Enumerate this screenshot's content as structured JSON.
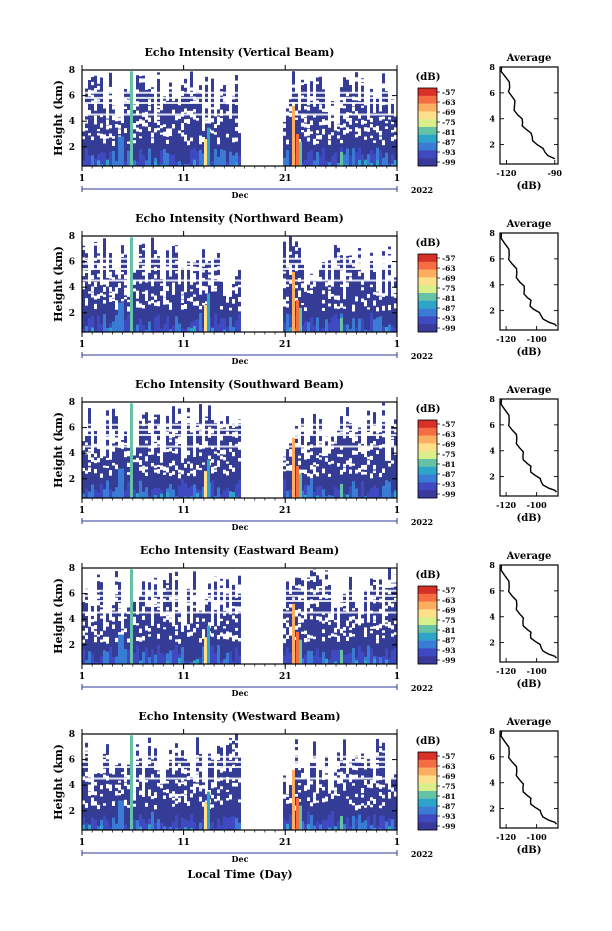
{
  "xaxis_label": "Local Time (Day)",
  "colorbar_unit": "(dB)",
  "colorbar_ticks": [
    "-57",
    "-63",
    "-69",
    "-75",
    "-81",
    "-87",
    "-93",
    "-99"
  ],
  "colorbar_colors": [
    "#d73027",
    "#f46d43",
    "#fdae61",
    "#fee08b",
    "#d9ef8b",
    "#66c2a5",
    "#2fa4c9",
    "#3a7bd5",
    "#3f49c2",
    "#3a3a9a"
  ],
  "year_label": "2022",
  "month_label": "Dec",
  "chart_data": [
    {
      "type": "heatmap",
      "title": "Echo Intensity (Vertical Beam)",
      "ylabel": "Height (km)",
      "xticks": [
        "1",
        "11",
        "21",
        "1"
      ],
      "yticks": [
        "2",
        "4",
        "6",
        "8"
      ],
      "ylim": [
        0.5,
        8
      ],
      "profile": {
        "title": "Average",
        "xlabel": "(dB)",
        "xticks": [
          "-120",
          "-90"
        ],
        "xlim": [
          -124,
          -88
        ],
        "yticks": [
          "2",
          "4",
          "6",
          "8"
        ],
        "ylim": [
          0.5,
          8
        ],
        "x": [
          -123,
          -121,
          -118,
          -117,
          -115,
          -113,
          -110,
          -108,
          -104,
          -101,
          -96,
          -90
        ],
        "y": [
          8.0,
          7.3,
          6.4,
          5.8,
          5.0,
          4.3,
          3.7,
          3.2,
          2.6,
          2.0,
          1.4,
          0.9
        ]
      }
    },
    {
      "type": "heatmap",
      "title": "Echo Intensity (Northward Beam)",
      "ylabel": "Height (km)",
      "xticks": [
        "1",
        "11",
        "21",
        "1"
      ],
      "yticks": [
        "2",
        "4",
        "6",
        "8"
      ],
      "ylim": [
        0.5,
        8
      ],
      "profile": {
        "title": "Average",
        "xlabel": "(dB)",
        "xticks": [
          "-120",
          "-100"
        ],
        "xlim": [
          -124,
          -86
        ],
        "yticks": [
          "2",
          "4",
          "6",
          "8"
        ],
        "ylim": [
          0.5,
          8
        ],
        "x": [
          -123,
          -121,
          -118,
          -116,
          -113,
          -111,
          -108,
          -106,
          -104,
          -102,
          -97,
          -92,
          -87
        ],
        "y": [
          8.0,
          7.2,
          6.3,
          5.6,
          4.9,
          4.2,
          3.6,
          3.0,
          2.6,
          2.1,
          1.6,
          1.1,
          0.8
        ]
      }
    },
    {
      "type": "heatmap",
      "title": "Echo Intensity (Southward Beam)",
      "ylabel": "Height (km)",
      "xticks": [
        "1",
        "11",
        "21",
        "1"
      ],
      "yticks": [
        "2",
        "4",
        "6",
        "8"
      ],
      "ylim": [
        0.5,
        8
      ],
      "profile": {
        "title": "Average",
        "xlabel": "(dB)",
        "xticks": [
          "-120",
          "-100"
        ],
        "xlim": [
          -124,
          -86
        ],
        "yticks": [
          "2",
          "4",
          "6",
          "8"
        ],
        "ylim": [
          0.5,
          8
        ],
        "x": [
          -123,
          -121,
          -118,
          -116,
          -113,
          -111,
          -109,
          -106,
          -104,
          -101,
          -97,
          -92,
          -87
        ],
        "y": [
          8.0,
          7.2,
          6.3,
          5.6,
          4.9,
          4.2,
          3.6,
          3.0,
          2.6,
          2.1,
          1.6,
          1.1,
          0.8
        ]
      }
    },
    {
      "type": "heatmap",
      "title": "Echo Intensity (Eastward Beam)",
      "ylabel": "Height (km)",
      "xticks": [
        "1",
        "11",
        "21",
        "1"
      ],
      "yticks": [
        "2",
        "4",
        "6",
        "8"
      ],
      "ylim": [
        0.5,
        8
      ],
      "profile": {
        "title": "Average",
        "xlabel": "(dB)",
        "xticks": [
          "-120",
          "-100"
        ],
        "xlim": [
          -124,
          -86
        ],
        "yticks": [
          "2",
          "4",
          "6",
          "8"
        ],
        "ylim": [
          0.5,
          8
        ],
        "x": [
          -123,
          -121,
          -118,
          -116,
          -113,
          -111,
          -109,
          -106,
          -104,
          -101,
          -97,
          -92,
          -87
        ],
        "y": [
          8.0,
          7.2,
          6.3,
          5.6,
          4.9,
          4.2,
          3.6,
          3.0,
          2.6,
          2.1,
          1.6,
          1.1,
          0.8
        ]
      }
    },
    {
      "type": "heatmap",
      "title": "Echo Intensity (Westward Beam)",
      "ylabel": "Height (km)",
      "xticks": [
        "1",
        "11",
        "21",
        "1"
      ],
      "yticks": [
        "2",
        "4",
        "6",
        "8"
      ],
      "ylim": [
        0.5,
        8
      ],
      "profile": {
        "title": "Average",
        "xlabel": "(dB)",
        "xticks": [
          "-120",
          "-100"
        ],
        "xlim": [
          -124,
          -86
        ],
        "yticks": [
          "2",
          "4",
          "6",
          "8"
        ],
        "ylim": [
          0.5,
          8
        ],
        "x": [
          -123,
          -121,
          -118,
          -116,
          -113,
          -111,
          -109,
          -106,
          -104,
          -101,
          -97,
          -92,
          -87
        ],
        "y": [
          8.0,
          7.2,
          6.3,
          5.6,
          4.9,
          4.2,
          3.6,
          3.0,
          2.6,
          2.1,
          1.6,
          1.1,
          0.8
        ]
      }
    }
  ]
}
